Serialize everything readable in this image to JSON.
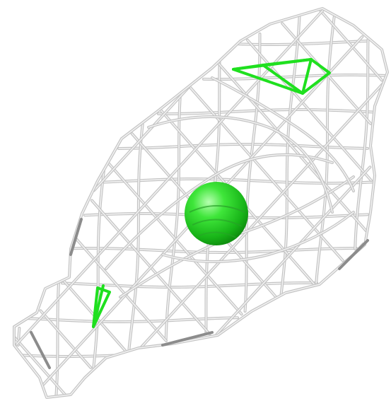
{
  "scene": {
    "background": "#ffffff",
    "mesh_color": "#c4c4c4",
    "mesh_highlight": "#f2f2f2",
    "mesh_shadow": "#8c8c8c",
    "marker_color": "#22dd22",
    "sphere_color": "#1fcc1f",
    "objects": [
      {
        "name": "density-mesh",
        "kind": "wireframe isosurface"
      },
      {
        "name": "central-sphere",
        "kind": "sphere"
      },
      {
        "name": "upper-marker",
        "kind": "green wire polygon"
      },
      {
        "name": "lower-marker",
        "kind": "green wire polygon"
      }
    ]
  }
}
